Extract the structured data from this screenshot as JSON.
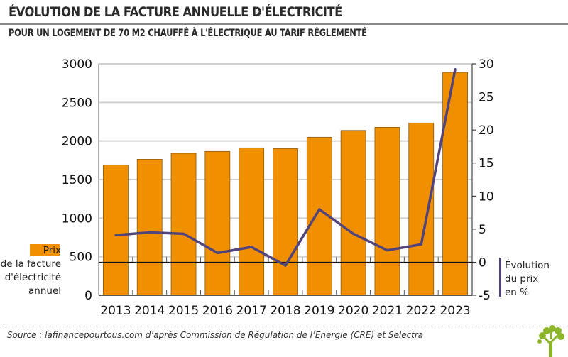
{
  "header": {
    "title": "ÉVOLUTION DE LA FACTURE ANNUELLE D'ÉLECTRICITÉ",
    "subtitle": "POUR UN LOGEMENT DE 70 M2 CHAUFFÉ À L'ÉLECTRIQUE AU TARIF RÉGLEMENTÉ"
  },
  "chart_data": {
    "type": "bar+line",
    "categories": [
      "2013",
      "2014",
      "2015",
      "2016",
      "2017",
      "2018",
      "2019",
      "2020",
      "2021",
      "2022",
      "2023"
    ],
    "series": [
      {
        "name": "Prix de la facture d'électricité annuel",
        "kind": "bar",
        "axis": "left",
        "color": "#f09000",
        "values": [
          1690,
          1763,
          1840,
          1865,
          1911,
          1902,
          2049,
          2137,
          2177,
          2233,
          2889
        ]
      },
      {
        "name": "Évolution du prix en %",
        "kind": "line",
        "axis": "right",
        "color": "#52447a",
        "values": [
          4.1,
          4.5,
          4.3,
          1.4,
          2.3,
          -0.5,
          8.0,
          4.3,
          1.8,
          2.7,
          29.2
        ]
      }
    ],
    "left_axis": {
      "ylim": [
        0,
        3000
      ],
      "ticks": [
        "0",
        "500",
        "1000",
        "1500",
        "2000",
        "2500",
        "3000"
      ]
    },
    "right_axis": {
      "ylim": [
        -5,
        30
      ],
      "ticks": [
        "-5",
        "0",
        "5",
        "10",
        "15",
        "20",
        "25",
        "30"
      ]
    },
    "legend": {
      "bar_label_highlight": "Prix",
      "bar_label_lines": [
        "de la facture",
        "d'électricité",
        "annuel"
      ],
      "line_label_lines": [
        "Évolution",
        "du prix",
        "en %"
      ]
    },
    "grid": true
  },
  "footer": {
    "source": "Source : lafinancepourtous.com d’après Commission de Régulation de l’Energie (CRE) et Selectra"
  }
}
